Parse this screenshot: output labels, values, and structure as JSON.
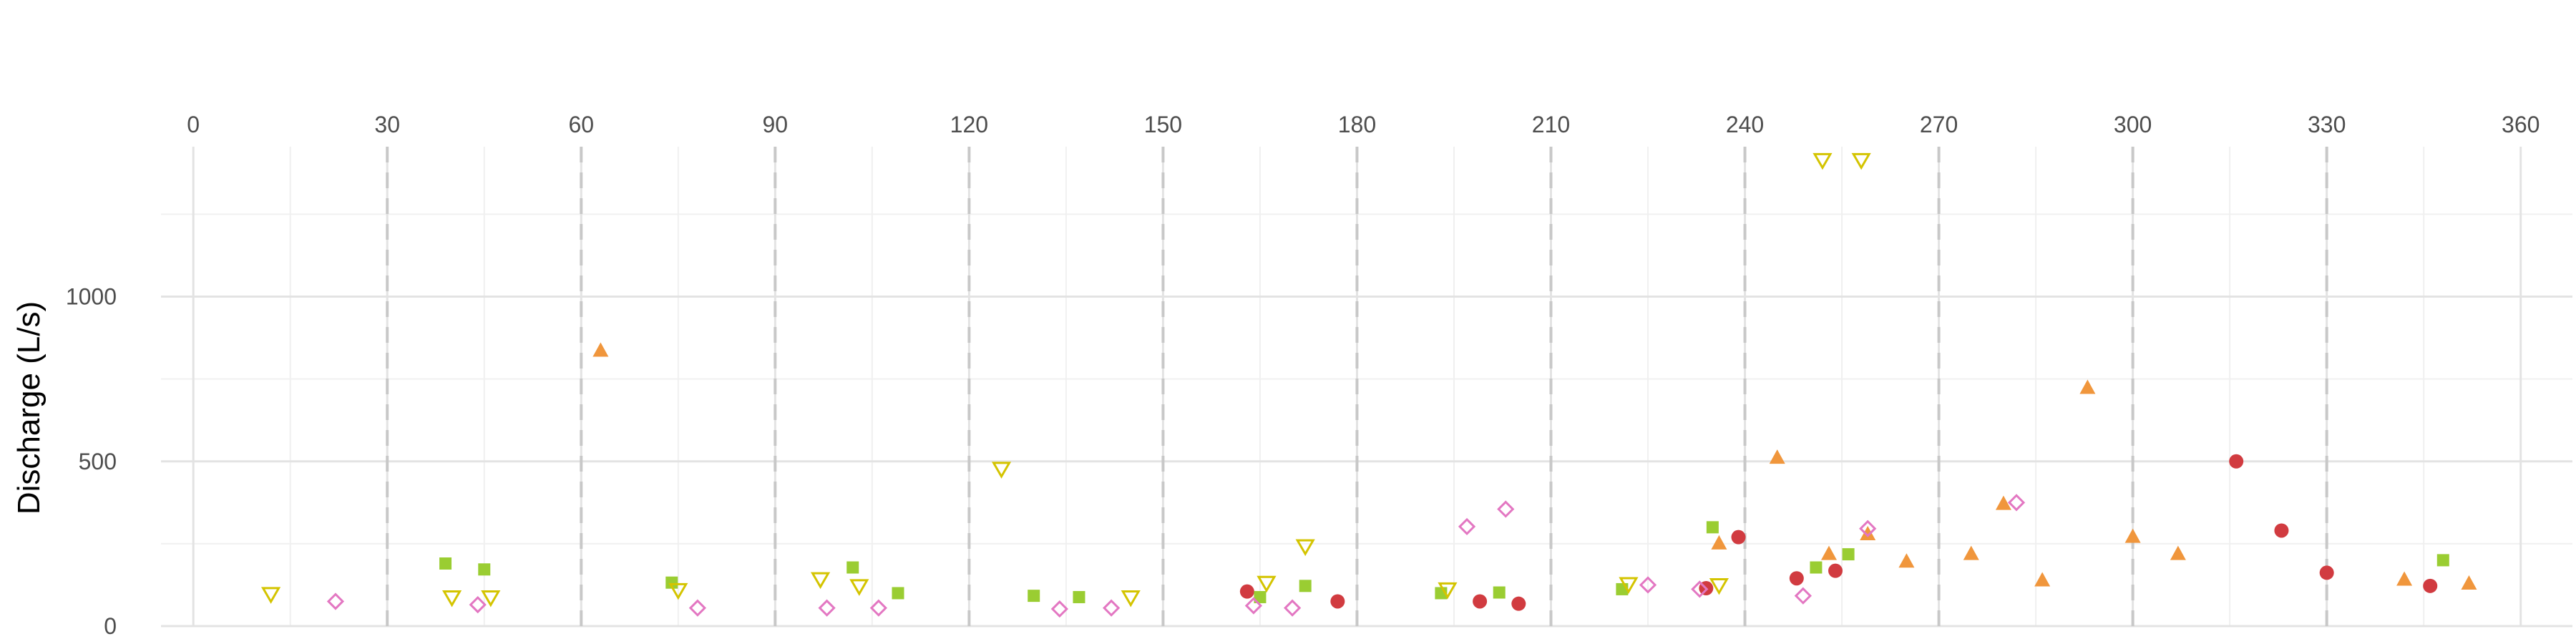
{
  "chart_data": {
    "type": "scatter",
    "title": "",
    "xlabel": "",
    "ylabel": "Discharge (L/s)",
    "xlim": [
      -5,
      368
    ],
    "ylim": [
      0,
      1455
    ],
    "x_ticks": [
      0,
      30,
      60,
      90,
      120,
      150,
      180,
      210,
      240,
      270,
      300,
      330,
      360
    ],
    "x_tick_labels": [
      "0",
      "30",
      "60",
      "90",
      "120",
      "150",
      "180",
      "210",
      "240",
      "270",
      "300",
      "330",
      "360"
    ],
    "y_ticks": [
      0,
      500,
      1000
    ],
    "y_tick_labels": [
      "0",
      "500",
      "1000"
    ],
    "x_axis_position": "top",
    "grid": true,
    "dashed_reference_lines_x": [
      30,
      60,
      90,
      120,
      150,
      180,
      210,
      240,
      270,
      300,
      330
    ],
    "legend": "none",
    "series": [
      {
        "marker": "circle",
        "filled": true,
        "color": "#d13b40",
        "points": [
          {
            "x": 163,
            "y": 105
          },
          {
            "x": 177,
            "y": 75
          },
          {
            "x": 199,
            "y": 75
          },
          {
            "x": 205,
            "y": 68
          },
          {
            "x": 234,
            "y": 115
          },
          {
            "x": 239,
            "y": 270
          },
          {
            "x": 248,
            "y": 145
          },
          {
            "x": 254,
            "y": 168
          },
          {
            "x": 316,
            "y": 500
          },
          {
            "x": 323,
            "y": 290
          },
          {
            "x": 330,
            "y": 162
          },
          {
            "x": 346,
            "y": 122
          }
        ]
      },
      {
        "marker": "triangle-up",
        "filled": true,
        "color": "#f0963c",
        "points": [
          {
            "x": 63,
            "y": 835
          },
          {
            "x": 236,
            "y": 250
          },
          {
            "x": 245,
            "y": 510
          },
          {
            "x": 253,
            "y": 218
          },
          {
            "x": 259,
            "y": 278
          },
          {
            "x": 265,
            "y": 195
          },
          {
            "x": 275,
            "y": 218
          },
          {
            "x": 280,
            "y": 370
          },
          {
            "x": 286,
            "y": 138
          },
          {
            "x": 293,
            "y": 722
          },
          {
            "x": 300,
            "y": 270
          },
          {
            "x": 307,
            "y": 218
          },
          {
            "x": 342,
            "y": 140
          },
          {
            "x": 352,
            "y": 128
          }
        ]
      },
      {
        "marker": "square",
        "filled": true,
        "color": "#9acd32",
        "points": [
          {
            "x": 39,
            "y": 190
          },
          {
            "x": 45,
            "y": 172
          },
          {
            "x": 74,
            "y": 132
          },
          {
            "x": 102,
            "y": 178
          },
          {
            "x": 109,
            "y": 100
          },
          {
            "x": 130,
            "y": 92
          },
          {
            "x": 137,
            "y": 88
          },
          {
            "x": 165,
            "y": 88
          },
          {
            "x": 172,
            "y": 122
          },
          {
            "x": 193,
            "y": 100
          },
          {
            "x": 202,
            "y": 102
          },
          {
            "x": 221,
            "y": 112
          },
          {
            "x": 235,
            "y": 300
          },
          {
            "x": 251,
            "y": 178
          },
          {
            "x": 256,
            "y": 218
          },
          {
            "x": 348,
            "y": 200
          }
        ]
      },
      {
        "marker": "triangle-down",
        "filled": false,
        "color": "#d4c400",
        "points": [
          {
            "x": 12,
            "y": 98
          },
          {
            "x": 40,
            "y": 88
          },
          {
            "x": 46,
            "y": 88
          },
          {
            "x": 75,
            "y": 110
          },
          {
            "x": 97,
            "y": 143
          },
          {
            "x": 103,
            "y": 122
          },
          {
            "x": 125,
            "y": 478
          },
          {
            "x": 145,
            "y": 88
          },
          {
            "x": 166,
            "y": 132
          },
          {
            "x": 172,
            "y": 243
          },
          {
            "x": 194,
            "y": 112
          },
          {
            "x": 222,
            "y": 128
          },
          {
            "x": 236,
            "y": 125
          },
          {
            "x": 252,
            "y": 1415
          },
          {
            "x": 258,
            "y": 1415
          }
        ]
      },
      {
        "marker": "diamond",
        "filled": false,
        "color": "#e377c2",
        "points": [
          {
            "x": 22,
            "y": 75
          },
          {
            "x": 44,
            "y": 65
          },
          {
            "x": 78,
            "y": 55
          },
          {
            "x": 98,
            "y": 55
          },
          {
            "x": 106,
            "y": 55
          },
          {
            "x": 134,
            "y": 52
          },
          {
            "x": 142,
            "y": 55
          },
          {
            "x": 164,
            "y": 62
          },
          {
            "x": 170,
            "y": 55
          },
          {
            "x": 197,
            "y": 302
          },
          {
            "x": 203,
            "y": 355
          },
          {
            "x": 225,
            "y": 125
          },
          {
            "x": 233,
            "y": 112
          },
          {
            "x": 249,
            "y": 92
          },
          {
            "x": 259,
            "y": 296
          },
          {
            "x": 282,
            "y": 375
          }
        ]
      }
    ]
  }
}
